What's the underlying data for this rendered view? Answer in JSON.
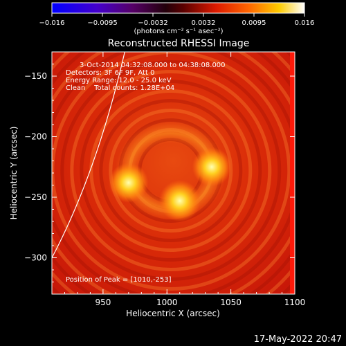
{
  "chart_data": {
    "type": "heatmap",
    "title": "Reconstructed RHESSI Image",
    "xlabel": "Heliocentric X (arcsec)",
    "ylabel": "Heliocentric Y (arcsec)",
    "xlim": [
      910,
      1100
    ],
    "ylim": [
      -330,
      -130
    ],
    "xticks": [
      950,
      1000,
      1050,
      1100
    ],
    "yticks": [
      -150,
      -200,
      -250,
      -300
    ],
    "colorbar": {
      "range": [
        -0.016,
        0.016
      ],
      "ticks": [
        "−0.016",
        "−0.0095",
        "−0.0032",
        "0.0032",
        "0.0095",
        "0.016"
      ],
      "unit_label": "(photons cm⁻² s⁻¹ asec⁻²)"
    },
    "annotations": [
      "3-Oct-2014 04:32:08.000 to 04:38:08.000",
      "Detectors: 3F 6F 9F, Att 0",
      "Energy Range: 12.0 - 25.0 keV",
      "Clean    Total counts: 1.28E+04"
    ],
    "peak_label": "Position of Peak = [1010,-253]",
    "peak": [
      1010,
      -253
    ],
    "sources": [
      {
        "x": 1010,
        "y": -253,
        "intensity": 1.0
      },
      {
        "x": 970,
        "y": -238,
        "intensity": 0.85
      },
      {
        "x": 1035,
        "y": -225,
        "intensity": 0.8
      }
    ],
    "timestamp": "17-May-2022 20:47"
  }
}
